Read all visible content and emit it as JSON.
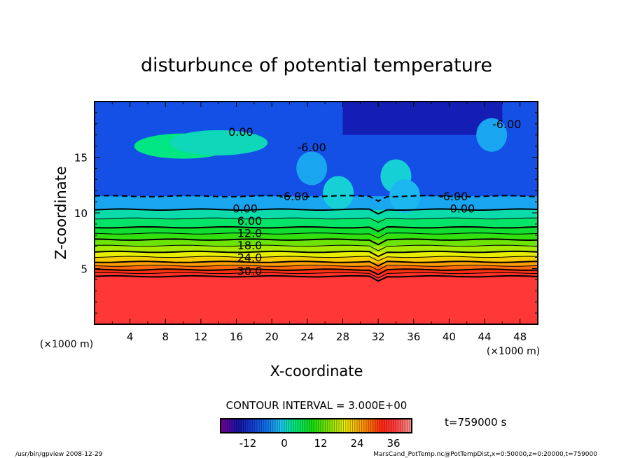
{
  "chart_data": {
    "type": "heatmap",
    "subtype": "filled-contour",
    "title": "disturbunce of potential temperature",
    "xlabel": "X-coordinate",
    "ylabel": "Z-coordinate",
    "x_unit": "(×1000 m)",
    "y_unit": "(×1000 m)",
    "xlim": [
      0,
      50
    ],
    "ylim": [
      0,
      20
    ],
    "x_ticks": [
      4,
      8,
      12,
      16,
      20,
      24,
      28,
      32,
      36,
      40,
      44,
      48
    ],
    "y_ticks": [
      5,
      10,
      15
    ],
    "contour_interval": "CONTOUR INTERVAL = 3.000E+00",
    "contour_levels_z": [
      {
        "level": 36,
        "z": 4.3
      },
      {
        "level": 33,
        "z": 4.6
      },
      {
        "level": 30,
        "z": 4.9
      },
      {
        "level": 27,
        "z": 5.25
      },
      {
        "level": 24,
        "z": 5.6
      },
      {
        "level": 21,
        "z": 6.05
      },
      {
        "level": 18,
        "z": 6.5
      },
      {
        "level": 15,
        "z": 7.05
      },
      {
        "level": 12,
        "z": 7.6
      },
      {
        "level": 9,
        "z": 8.15
      },
      {
        "level": 6,
        "z": 8.7
      },
      {
        "level": 3,
        "z": 9.5
      },
      {
        "level": 0,
        "z": 10.3
      },
      {
        "level": -6,
        "z": 11.5
      }
    ],
    "contour_labels": [
      {
        "text": "0.00",
        "x": 16.5,
        "z": 17.3
      },
      {
        "text": "-6.00",
        "x": 24.5,
        "z": 15.9
      },
      {
        "text": "-6.00",
        "x": 22.5,
        "z": 11.5
      },
      {
        "text": "-6.00",
        "x": 40.5,
        "z": 11.5
      },
      {
        "text": "-6.00",
        "x": 46.5,
        "z": 18.0
      },
      {
        "text": "0.00",
        "x": 17.0,
        "z": 10.4
      },
      {
        "text": "0.00",
        "x": 41.5,
        "z": 10.4
      },
      {
        "text": "6.00",
        "x": 17.5,
        "z": 9.3
      },
      {
        "text": "12.0",
        "x": 17.5,
        "z": 8.2
      },
      {
        "text": "18.0",
        "x": 17.5,
        "z": 7.1
      },
      {
        "text": "24.0",
        "x": 17.5,
        "z": 6.0
      },
      {
        "text": "30.0",
        "x": 17.5,
        "z": 4.8
      }
    ],
    "anomalies": [
      {
        "x": 10,
        "z": 16.0,
        "value": 3
      },
      {
        "x": 14,
        "z": 16.3,
        "value": 1
      },
      {
        "x": 27.5,
        "z": 11.8,
        "value": 0
      },
      {
        "x": 34,
        "z": 13.3,
        "value": 0
      },
      {
        "x": 35,
        "z": 11.5,
        "value": -2
      },
      {
        "x": 24.5,
        "z": 14,
        "value": -3
      },
      {
        "x": 44.8,
        "z": 17,
        "value": -3
      }
    ],
    "colorbar": {
      "min": -21,
      "max": 42,
      "step": 3,
      "ticks": [
        -12,
        0,
        12,
        24,
        36
      ]
    }
  },
  "time_label": "t=759000 s",
  "footer": {
    "left": "/usr/bin/gpview   2008-12-29",
    "right": "MarsCand_PotTemp.nc@PotTempDist,x=0:50000,z=0:20000,t=759000"
  }
}
